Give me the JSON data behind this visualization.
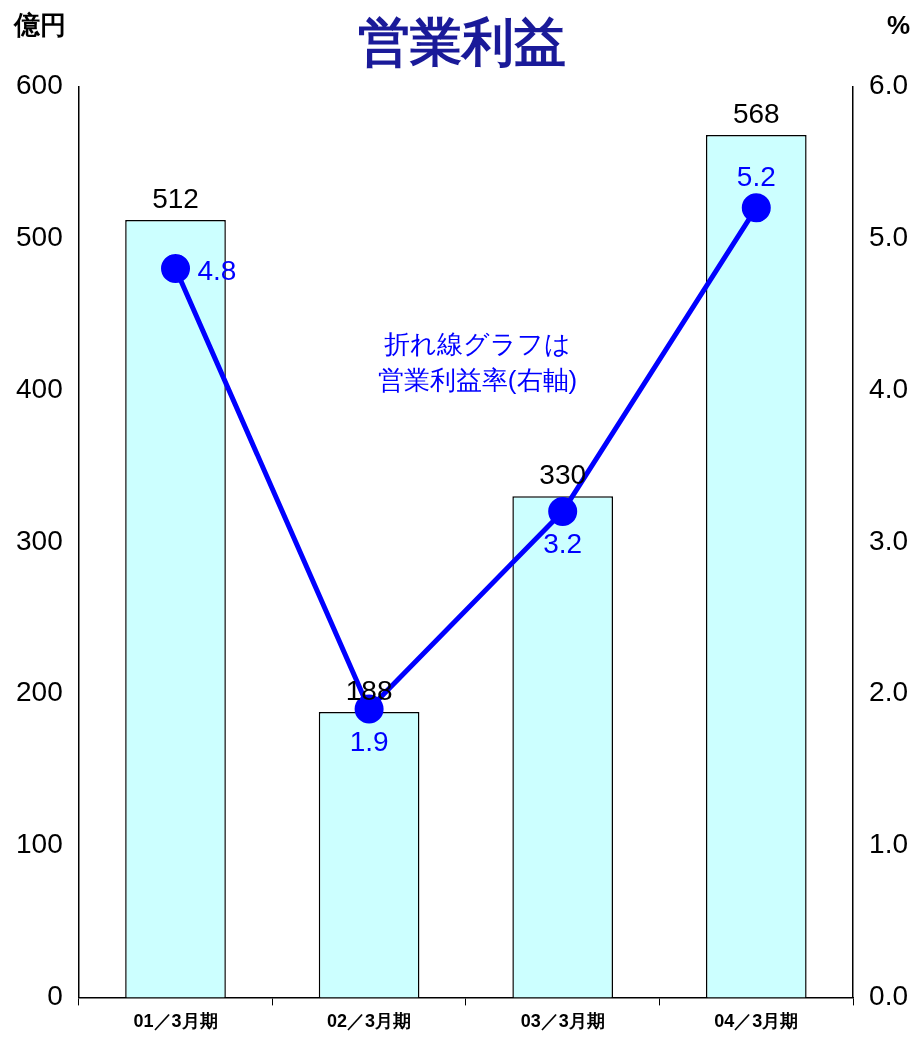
{
  "chart_data": {
    "type": "bar",
    "title": "営業利益",
    "ylabel": "億円",
    "y2label": "%",
    "categories": [
      "01／3月期",
      "02／3月期",
      "03／3月期",
      "04／3月期"
    ],
    "series": [
      {
        "color": "#ccffff",
        "values": [
          512,
          188,
          330,
          568
        ]
      },
      {
        "type": "line",
        "axis": "y2",
        "color": "#0000ff",
        "values": [
          4.8,
          1.9,
          3.2,
          5.2
        ]
      }
    ],
    "ylim": [
      0,
      600
    ],
    "yticks": [
      0,
      100,
      200,
      300,
      400,
      500,
      600
    ],
    "y2lim": [
      0,
      6
    ],
    "y2ticks": [
      {
        "value": 0,
        "label": "0.0"
      },
      {
        "value": 1,
        "label": "1.0"
      },
      {
        "value": 2,
        "label": "2.0"
      },
      {
        "value": 3,
        "label": "3.0"
      },
      {
        "value": 4,
        "label": "4.0"
      },
      {
        "value": 5,
        "label": "5.0"
      },
      {
        "value": 6,
        "label": "6.0"
      }
    ],
    "annotations": [
      "折れ線グラフは",
      "営業利益率(右軸)"
    ],
    "data_labels": true,
    "marker": "circle",
    "grid": false,
    "legend": false
  }
}
